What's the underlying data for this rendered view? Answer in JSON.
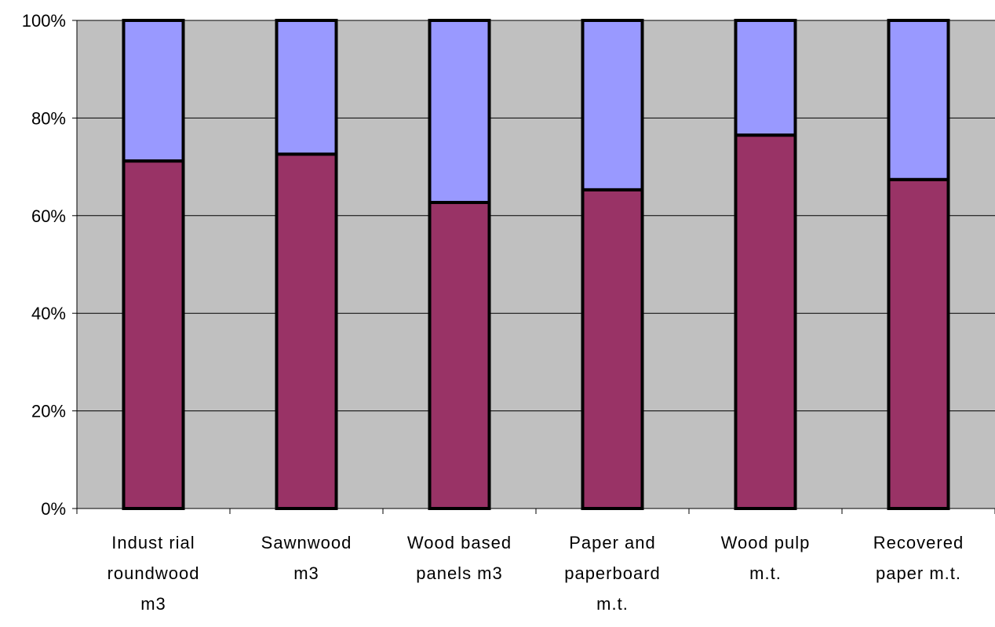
{
  "chart_data": {
    "type": "bar",
    "stacked": true,
    "normalized_percent": true,
    "categories": [
      [
        "Indust rial",
        "roundwood",
        "m3"
      ],
      [
        "Sawnwood",
        "m3"
      ],
      [
        "Wood based",
        "panels m3"
      ],
      [
        "Paper and",
        "paperboard",
        "m.t."
      ],
      [
        "Wood pulp",
        "m.t."
      ],
      [
        "Recovered",
        "paper m.t."
      ]
    ],
    "series": [
      {
        "values": [
          71.2,
          72.6,
          62.7,
          65.3,
          76.5,
          67.4
        ],
        "color": "#993366"
      },
      {
        "values": [
          28.8,
          27.4,
          37.3,
          34.7,
          23.5,
          32.6
        ],
        "color": "#9999ff"
      }
    ],
    "yticks": [
      "0%",
      "20%",
      "40%",
      "60%",
      "80%",
      "100%"
    ],
    "ylim": [
      0,
      100
    ],
    "grid": true,
    "legend": "none",
    "plot_background": "#c0c0c0",
    "outline_color": "#000000",
    "title": "",
    "xlabel": "",
    "ylabel": ""
  }
}
